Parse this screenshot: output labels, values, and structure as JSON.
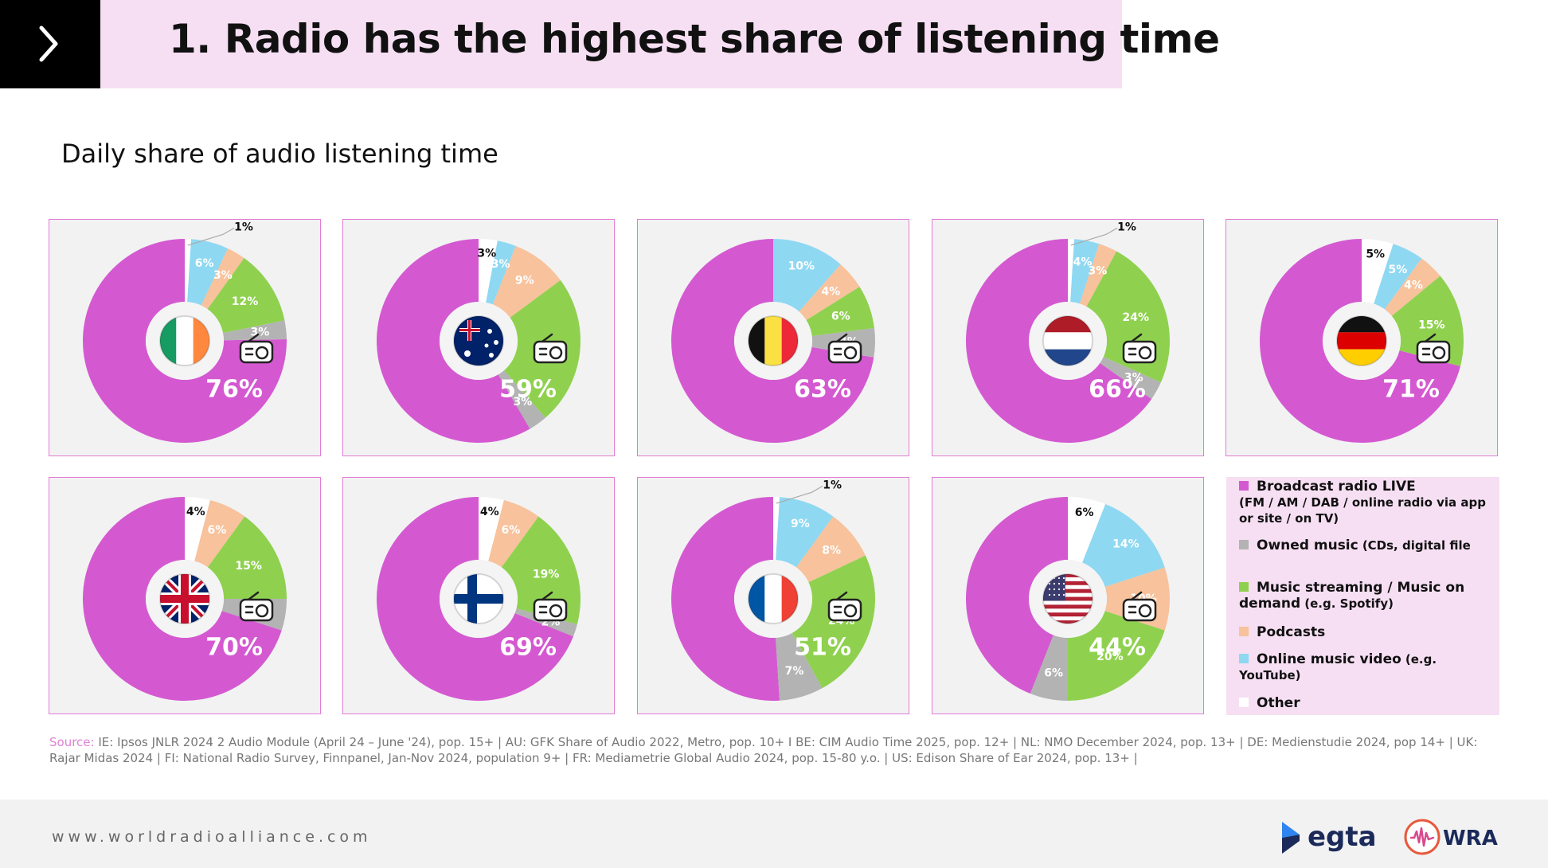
{
  "header": {
    "title": "1. Radio has the highest share of listening time",
    "nav_icon": "chevron-right-icon"
  },
  "subtitle": "Daily share of audio listening time",
  "colors": {
    "broadcast_radio": "#d459d1",
    "owned_music": "#b3b3b3",
    "streaming": "#8fd14f",
    "podcasts": "#f7c29c",
    "online_video": "#8ed8f2",
    "other": "#ffffff",
    "accent_pink": "#f6dff3"
  },
  "chart_data": [
    {
      "type": "pie",
      "country": "IE",
      "flag_icon": "ireland-flag-icon",
      "radio_icon": "radio-icon",
      "slices": [
        {
          "key": "broadcast_radio",
          "value": 76,
          "label": "76%"
        },
        {
          "key": "owned_music",
          "value": 3,
          "label": "3%"
        },
        {
          "key": "streaming",
          "value": 12,
          "label": "12%"
        },
        {
          "key": "podcasts",
          "value": 3,
          "label": "3%"
        },
        {
          "key": "online_video",
          "value": 6,
          "label": "6%"
        },
        {
          "key": "other",
          "value": 1,
          "label": "1%"
        }
      ]
    },
    {
      "type": "pie",
      "country": "AU",
      "flag_icon": "australia-flag-icon",
      "radio_icon": "radio-icon",
      "slices": [
        {
          "key": "broadcast_radio",
          "value": 59,
          "label": "59%"
        },
        {
          "key": "owned_music",
          "value": 3,
          "label": "3%"
        },
        {
          "key": "streaming",
          "value": 24,
          "label": "24%"
        },
        {
          "key": "podcasts",
          "value": 9,
          "label": "9%"
        },
        {
          "key": "online_video",
          "value": 3,
          "label": "3%"
        },
        {
          "key": "other",
          "value": 3,
          "label": "3%"
        }
      ]
    },
    {
      "type": "pie",
      "country": "BE",
      "flag_icon": "belgium-flag-icon",
      "radio_icon": "radio-icon",
      "slices": [
        {
          "key": "broadcast_radio",
          "value": 63,
          "label": "63%"
        },
        {
          "key": "owned_music",
          "value": 4,
          "label": "4%"
        },
        {
          "key": "streaming",
          "value": 6,
          "label": "6%"
        },
        {
          "key": "podcasts",
          "value": 4,
          "label": "4%"
        },
        {
          "key": "online_video",
          "value": 10,
          "label": "10%"
        }
      ]
    },
    {
      "type": "pie",
      "country": "NL",
      "flag_icon": "netherlands-flag-icon",
      "radio_icon": "radio-icon",
      "slices": [
        {
          "key": "broadcast_radio",
          "value": 66,
          "label": "66%"
        },
        {
          "key": "owned_music",
          "value": 3,
          "label": "3%"
        },
        {
          "key": "streaming",
          "value": 24,
          "label": "24%"
        },
        {
          "key": "podcasts",
          "value": 3,
          "label": "3%"
        },
        {
          "key": "online_video",
          "value": 4,
          "label": "4%"
        },
        {
          "key": "other",
          "value": 1,
          "label": "1%"
        }
      ]
    },
    {
      "type": "pie",
      "country": "DE",
      "flag_icon": "germany-flag-icon",
      "radio_icon": "radio-icon",
      "slices": [
        {
          "key": "broadcast_radio",
          "value": 71,
          "label": "71%"
        },
        {
          "key": "streaming",
          "value": 15,
          "label": "15%"
        },
        {
          "key": "podcasts",
          "value": 4,
          "label": "4%"
        },
        {
          "key": "online_video",
          "value": 5,
          "label": "5%"
        },
        {
          "key": "other",
          "value": 5,
          "label": "5%"
        }
      ]
    },
    {
      "type": "pie",
      "country": "UK",
      "flag_icon": "uk-flag-icon",
      "radio_icon": "radio-icon",
      "slices": [
        {
          "key": "broadcast_radio",
          "value": 70,
          "label": "70%"
        },
        {
          "key": "owned_music",
          "value": 5,
          "label": "5%"
        },
        {
          "key": "streaming",
          "value": 15,
          "label": "15%"
        },
        {
          "key": "podcasts",
          "value": 6,
          "label": "6%"
        },
        {
          "key": "other",
          "value": 4,
          "label": "4%"
        }
      ]
    },
    {
      "type": "pie",
      "country": "FI",
      "flag_icon": "finland-flag-icon",
      "radio_icon": "radio-icon",
      "slices": [
        {
          "key": "broadcast_radio",
          "value": 69,
          "label": "69%"
        },
        {
          "key": "owned_music",
          "value": 2,
          "label": "2%"
        },
        {
          "key": "streaming",
          "value": 19,
          "label": "19%"
        },
        {
          "key": "podcasts",
          "value": 6,
          "label": "6%"
        },
        {
          "key": "other",
          "value": 4,
          "label": "4%"
        }
      ]
    },
    {
      "type": "pie",
      "country": "FR",
      "flag_icon": "france-flag-icon",
      "radio_icon": "radio-icon",
      "slices": [
        {
          "key": "broadcast_radio",
          "value": 51,
          "label": "51%"
        },
        {
          "key": "owned_music",
          "value": 7,
          "label": "7%"
        },
        {
          "key": "streaming",
          "value": 24,
          "label": "24%"
        },
        {
          "key": "podcasts",
          "value": 8,
          "label": "8%"
        },
        {
          "key": "online_video",
          "value": 9,
          "label": "9%"
        },
        {
          "key": "other",
          "value": 1,
          "label": "1%"
        }
      ]
    },
    {
      "type": "pie",
      "country": "US",
      "flag_icon": "usa-flag-icon",
      "radio_icon": "radio-icon",
      "slices": [
        {
          "key": "broadcast_radio",
          "value": 44,
          "label": "44%"
        },
        {
          "key": "owned_music",
          "value": 6,
          "label": "6%"
        },
        {
          "key": "streaming",
          "value": 20,
          "label": "20%"
        },
        {
          "key": "podcasts",
          "value": 10,
          "label": "10%"
        },
        {
          "key": "online_video",
          "value": 14,
          "label": "14%"
        },
        {
          "key": "other",
          "value": 6,
          "label": "6%"
        }
      ]
    }
  ],
  "legend": [
    {
      "key": "broadcast_radio",
      "name": "Broadcast radio LIVE",
      "note": "(FM / AM / DAB / online radio via app or site / on TV)"
    },
    {
      "key": "owned_music",
      "name": "Owned music",
      "note": "(CDs, digital file"
    },
    {
      "key": "streaming",
      "name": "Music streaming / Music on demand",
      "note": "(e.g. Spotify)"
    },
    {
      "key": "podcasts",
      "name": "Podcasts",
      "note": ""
    },
    {
      "key": "online_video",
      "name": "Online music video",
      "note": "(e.g. YouTube)"
    },
    {
      "key": "other",
      "name": "Other",
      "note": ""
    }
  ],
  "source": {
    "label": "Source:",
    "text": " IE: Ipsos JNLR 2024 2 Audio Module (April 24 – June '24), pop. 15+ | AU: GFK Share of Audio 2022, Metro, pop. 10+ I BE: CIM Audio Time 2025, pop. 12+ | NL: NMO December 2024, pop. 13+ | DE: Medienstudie 2024, pop 14+ | UK: Rajar Midas 2024 | FI: National Radio Survey, Finnpanel, Jan-Nov 2024, population 9+ | FR: Mediametrie Global Audio 2024, pop. 15-80 y.o. | US: Edison Share of Ear 2024, pop. 13+ |"
  },
  "footer": {
    "url": "www.worldradioalliance.com",
    "logos": [
      {
        "name": "egta-logo",
        "text": "egta"
      },
      {
        "name": "wra-logo",
        "text": "WRA"
      }
    ]
  }
}
